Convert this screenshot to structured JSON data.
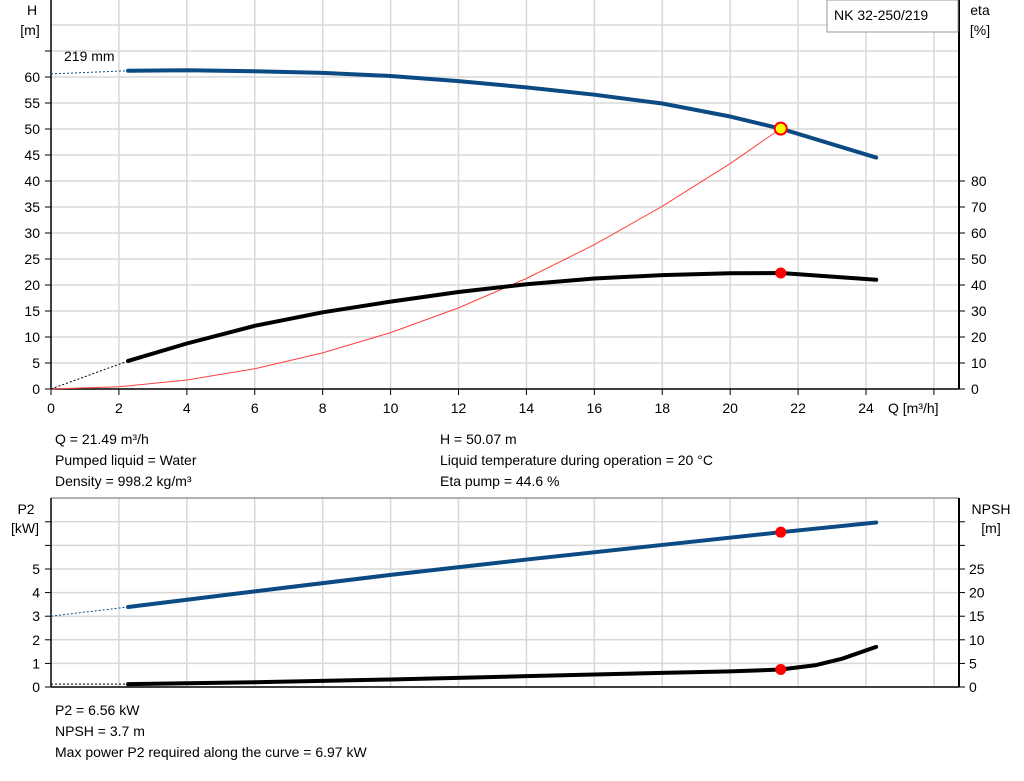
{
  "chart_data": [
    {
      "type": "line",
      "title": "NK 32-250/219",
      "annotation": "219 mm",
      "xlabel": "Q [m³/h]",
      "ylabel_left": [
        "H",
        "[m]"
      ],
      "ylabel_right": [
        "eta",
        "[%]"
      ],
      "xlim": [
        0,
        26
      ],
      "xticks": [
        0,
        2,
        4,
        6,
        8,
        10,
        12,
        14,
        16,
        18,
        20,
        22,
        24
      ],
      "ylim_left": [
        0,
        70
      ],
      "yticks_left": [
        0,
        5,
        10,
        15,
        20,
        25,
        30,
        35,
        40,
        45,
        50,
        55,
        60
      ],
      "yticks_right": [
        0,
        10,
        20,
        30,
        40,
        50,
        60,
        70,
        80
      ],
      "grid": true,
      "series": [
        {
          "name": "H",
          "axis": "left",
          "color": "#0b4a82",
          "x": [
            2.27,
            4,
            6,
            8,
            10,
            12,
            14,
            16,
            18,
            20,
            21.49,
            24.3
          ],
          "y": [
            61.2,
            61.3,
            61.1,
            60.8,
            60.2,
            59.2,
            58.0,
            56.6,
            54.9,
            52.4,
            50.07,
            44.5
          ],
          "extrapolated_from": [
            0,
            60.6
          ]
        },
        {
          "name": "eta",
          "axis": "right",
          "color": "#000000",
          "x": [
            2.27,
            4,
            6,
            8,
            10,
            12,
            14,
            16,
            18,
            20,
            21.49,
            24.3
          ],
          "y": [
            10.8,
            17.5,
            24.3,
            29.5,
            33.6,
            37.3,
            40.3,
            42.5,
            43.8,
            44.5,
            44.6,
            42.0
          ],
          "extrapolated_from": [
            0,
            0
          ]
        },
        {
          "name": "system curve",
          "axis": "left",
          "color": "#ff4040",
          "x": [
            0,
            2,
            4,
            6,
            8,
            10,
            12,
            14,
            16,
            18,
            20,
            21.49
          ],
          "y": [
            0,
            0.43,
            1.73,
            3.9,
            6.94,
            10.84,
            15.6,
            21.25,
            27.75,
            35.13,
            43.36,
            50.07
          ]
        }
      ],
      "duty_point": {
        "Q": 21.49,
        "H": 50.07,
        "eta": 44.6
      }
    },
    {
      "type": "line",
      "xlim": [
        0,
        26
      ],
      "ylabel_left": [
        "P2",
        "[kW]"
      ],
      "ylabel_right": [
        "NPSH",
        "[m]"
      ],
      "ylim_left": [
        0,
        8
      ],
      "yticks_left": [
        0,
        1,
        2,
        3,
        4,
        5
      ],
      "ylim_right": [
        0,
        40
      ],
      "yticks_right": [
        0,
        5,
        10,
        15,
        20,
        25
      ],
      "grid": true,
      "series": [
        {
          "name": "P2",
          "axis": "left",
          "color": "#0b4a82",
          "x": [
            2.27,
            6,
            10,
            14,
            18,
            21.49,
            24.3
          ],
          "y": [
            3.39,
            4.05,
            4.75,
            5.4,
            6.02,
            6.56,
            6.97
          ],
          "extrapolated_from": [
            0,
            3.0
          ]
        },
        {
          "name": "NPSH",
          "axis": "right",
          "color": "#000000",
          "x": [
            2.27,
            6,
            10,
            14,
            18,
            20,
            21.49,
            22.5,
            23.3,
            24.3
          ],
          "y": [
            0.6,
            1.0,
            1.6,
            2.3,
            3.0,
            3.3,
            3.7,
            4.6,
            6.0,
            8.5
          ],
          "extrapolated_from": [
            0,
            0.6
          ]
        }
      ],
      "duty_point": {
        "Q": 21.49,
        "P2": 6.56,
        "NPSH": 3.7
      }
    }
  ],
  "info_top": {
    "q": "Q = 21.49 m³/h",
    "liquid": "Pumped liquid = Water",
    "density": "Density = 998.2 kg/m³",
    "h": "H = 50.07 m",
    "temp": "Liquid temperature during operation = 20 °C",
    "eta": "Eta pump = 44.6 %"
  },
  "info_bottom": {
    "p2": "P2 = 6.56 kW",
    "npsh": "NPSH = 3.7 m",
    "max_power": "Max power P2 required along the curve = 6.97 kW"
  }
}
